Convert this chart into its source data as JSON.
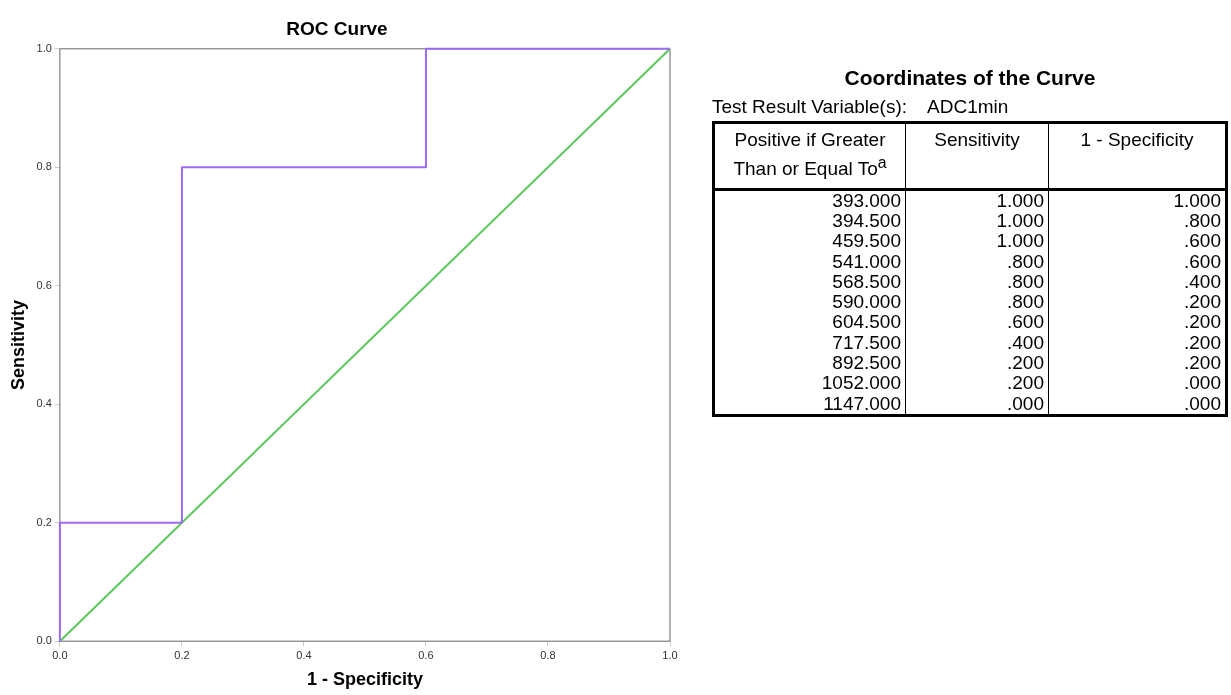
{
  "chart_data": [
    {
      "type": "line",
      "title": "ROC Curve",
      "xlabel": "1 - Specificity",
      "ylabel": "Sensitivity",
      "marker": "none",
      "grid": false,
      "legend": false,
      "xlim": [
        0,
        1
      ],
      "ylim": [
        0,
        1
      ],
      "xticks": [
        {
          "value": 0,
          "label": "0.0"
        },
        {
          "value": 0.2,
          "label": "0.2"
        },
        {
          "value": 0.4,
          "label": "0.4"
        },
        {
          "value": 0.6,
          "label": "0.6"
        },
        {
          "value": 0.8,
          "label": "0.8"
        },
        {
          "value": 1,
          "label": "1.0"
        }
      ],
      "yticks": [
        {
          "value": 0,
          "label": "0.0"
        },
        {
          "value": 0.2,
          "label": "0.2"
        },
        {
          "value": 0.4,
          "label": "0.4"
        },
        {
          "value": 0.6,
          "label": "0.6"
        },
        {
          "value": 0.8,
          "label": "0.8"
        },
        {
          "value": 1,
          "label": "1.0"
        }
      ],
      "series": [
        {
          "color": "#9b6bf2",
          "x": [
            1,
            0.8,
            0.6,
            0.6,
            0.4,
            0.2,
            0.2,
            0.2,
            0.2,
            0,
            0
          ],
          "values": [
            1,
            1,
            1,
            0.8,
            0.8,
            0.8,
            0.6,
            0.4,
            0.2,
            0.2,
            0
          ]
        },
        {
          "color": "#5ac85a",
          "x": [
            0,
            1
          ],
          "values": [
            0,
            1
          ]
        }
      ]
    },
    {
      "type": "other",
      "title": "Coordinates of the Curve",
      "subtitle": "Test Result Variable(s):    ADC1min",
      "xlabel": "Positive if Greater Than or Equal To$^{a}$",
      "categories": [
        "393.000",
        "394.500",
        "459.500",
        "541.000",
        "568.500",
        "590.000",
        "604.500",
        "717.500",
        "892.500",
        "1052.000",
        "1147.000"
      ],
      "series": [
        {
          "name": "Sensitivity",
          "values": [
            1,
            1,
            1,
            0.8,
            0.8,
            0.8,
            0.6,
            0.4,
            0.2,
            0.2,
            0
          ],
          "value_labels": [
            "1.000",
            "1.000",
            "1.000",
            ".800",
            ".800",
            ".800",
            ".600",
            ".400",
            ".200",
            ".200",
            ".000"
          ]
        },
        {
          "name": "1 - Specificity",
          "values": [
            1,
            0.8,
            0.6,
            0.6,
            0.4,
            0.2,
            0.2,
            0.2,
            0.2,
            0,
            0
          ],
          "value_labels": [
            "1.000",
            ".800",
            ".600",
            ".600",
            ".400",
            ".200",
            ".200",
            ".200",
            ".200",
            ".000",
            ".000"
          ]
        }
      ]
    }
  ]
}
